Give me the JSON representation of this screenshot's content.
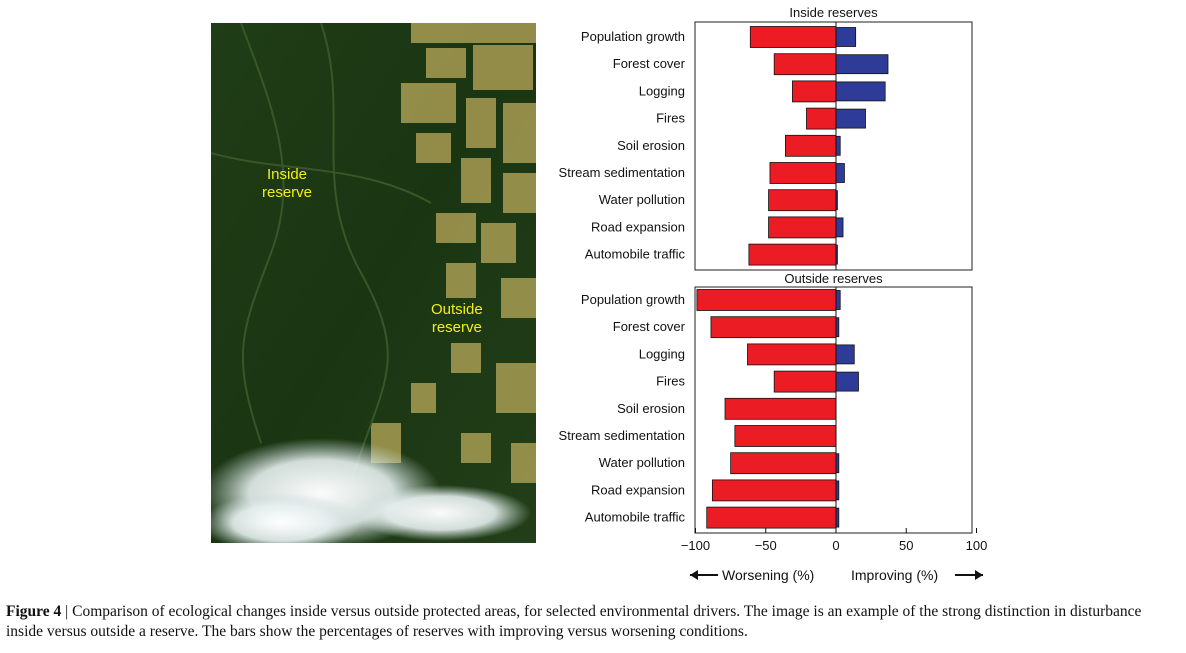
{
  "photo": {
    "inside_label": [
      "Inside",
      "reserve"
    ],
    "outside_label": [
      "Outside",
      "reserve"
    ]
  },
  "chart_data": [
    {
      "type": "bar",
      "orientation": "horizontal",
      "title": "Inside reserves",
      "categories": [
        "Population growth",
        "Forest cover",
        "Logging",
        "Fires",
        "Soil erosion",
        "Stream sedimentation",
        "Water pollution",
        "Road expansion",
        "Automobile traffic"
      ],
      "series": [
        {
          "name": "Worsening (%)",
          "color": "#ec1c24",
          "values": [
            -61,
            -44,
            -31,
            -21,
            -36,
            -47,
            -48,
            -48,
            -62
          ]
        },
        {
          "name": "Improving (%)",
          "color": "#2e3c98",
          "values": [
            14,
            37,
            35,
            21,
            3,
            6,
            1,
            5,
            1
          ]
        }
      ],
      "xlim": [
        -100,
        100
      ]
    },
    {
      "type": "bar",
      "orientation": "horizontal",
      "title": "Outside reserves",
      "categories": [
        "Population growth",
        "Forest cover",
        "Logging",
        "Fires",
        "Soil erosion",
        "Stream sedimentation",
        "Water pollution",
        "Road expansion",
        "Automobile traffic"
      ],
      "series": [
        {
          "name": "Worsening (%)",
          "color": "#ec1c24",
          "values": [
            -99,
            -89,
            -63,
            -44,
            -79,
            -72,
            -75,
            -88,
            -92
          ]
        },
        {
          "name": "Improving (%)",
          "color": "#2e3c98",
          "values": [
            3,
            2,
            13,
            16,
            0,
            0,
            2,
            2,
            2
          ]
        }
      ],
      "xlim": [
        -100,
        100
      ],
      "xticks": [
        "−100",
        "−50",
        "0",
        "50",
        "100"
      ]
    }
  ],
  "direction_labels": {
    "left": "Worsening (%)",
    "right": "Improving (%)"
  },
  "caption": {
    "figure": "Figure 4",
    "separator": " | ",
    "text": "Comparison of ecological changes inside versus outside protected areas, for selected environmental drivers. The image is an example of the strong distinction in disturbance inside versus outside a reserve. The bars show the percentages of reserves with improving versus worsening conditions."
  }
}
